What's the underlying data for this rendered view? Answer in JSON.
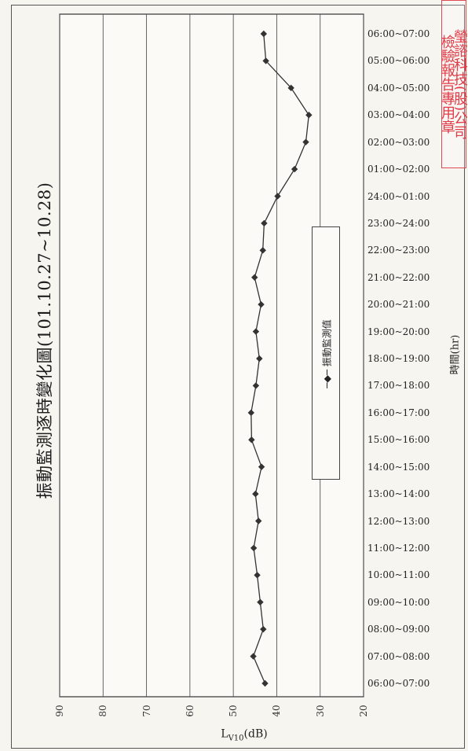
{
  "stamp": {
    "line1": "檢驗報告專用章",
    "line2": "瑩諮科技(股)公司"
  },
  "legend": {
    "label": "振動監測值"
  },
  "chart_data": {
    "type": "line",
    "title": "振動監測逐時變化圖(101.10.27~10.28)",
    "xlabel": "時間(hr)",
    "ylabel_main": "L",
    "ylabel_sub": "V10",
    "ylabel_unit": "(dB)",
    "ylim": [
      20,
      90
    ],
    "yticks": [
      90,
      80,
      70,
      60,
      50,
      40,
      30,
      20
    ],
    "grid": true,
    "legend_placement": "center-right",
    "categories": [
      "06:00~07:00",
      "07:00~08:00",
      "08:00~09:00",
      "09:00~10:00",
      "10:00~11:00",
      "11:00~12:00",
      "12:00~13:00",
      "13:00~14:00",
      "14:00~15:00",
      "15:00~16:00",
      "16:00~17:00",
      "17:00~18:00",
      "18:00~19:00",
      "19:00~20:00",
      "20:00~21:00",
      "21:00~22:00",
      "22:00~23:00",
      "23:00~24:00",
      "24:00~01:00",
      "01:00~02:00",
      "02:00~03:00",
      "03:00~04:00",
      "04:00~05:00",
      "05:00~06:00",
      "06:00~07:00"
    ],
    "series": [
      {
        "name": "振動監測值",
        "color": "#333333",
        "values": [
          42.7,
          45.4,
          43.1,
          43.8,
          44.5,
          45.3,
          44.2,
          44.9,
          43.5,
          45.8,
          45.9,
          44.8,
          44.0,
          44.8,
          43.6,
          45.1,
          43.2,
          42.9,
          39.8,
          35.9,
          33.3,
          32.6,
          36.7,
          42.5,
          43.0
        ]
      }
    ]
  }
}
